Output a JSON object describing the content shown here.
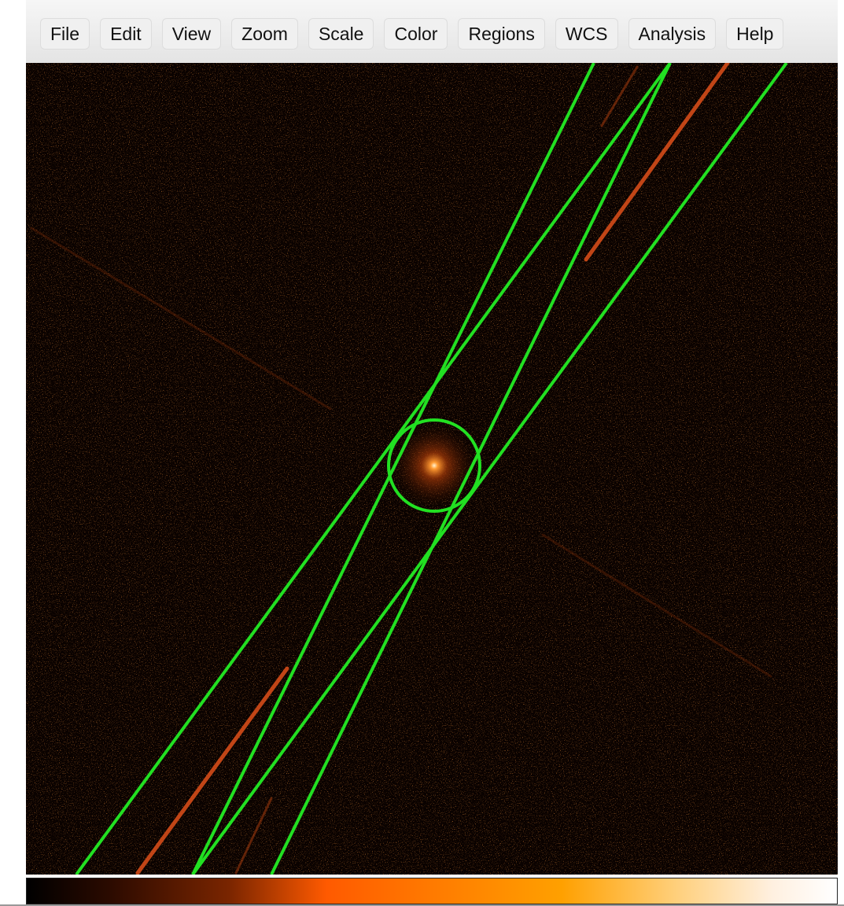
{
  "menu": {
    "items": [
      "File",
      "Edit",
      "View",
      "Zoom",
      "Scale",
      "Color",
      "Regions",
      "WCS",
      "Analysis",
      "Help"
    ]
  }
}
